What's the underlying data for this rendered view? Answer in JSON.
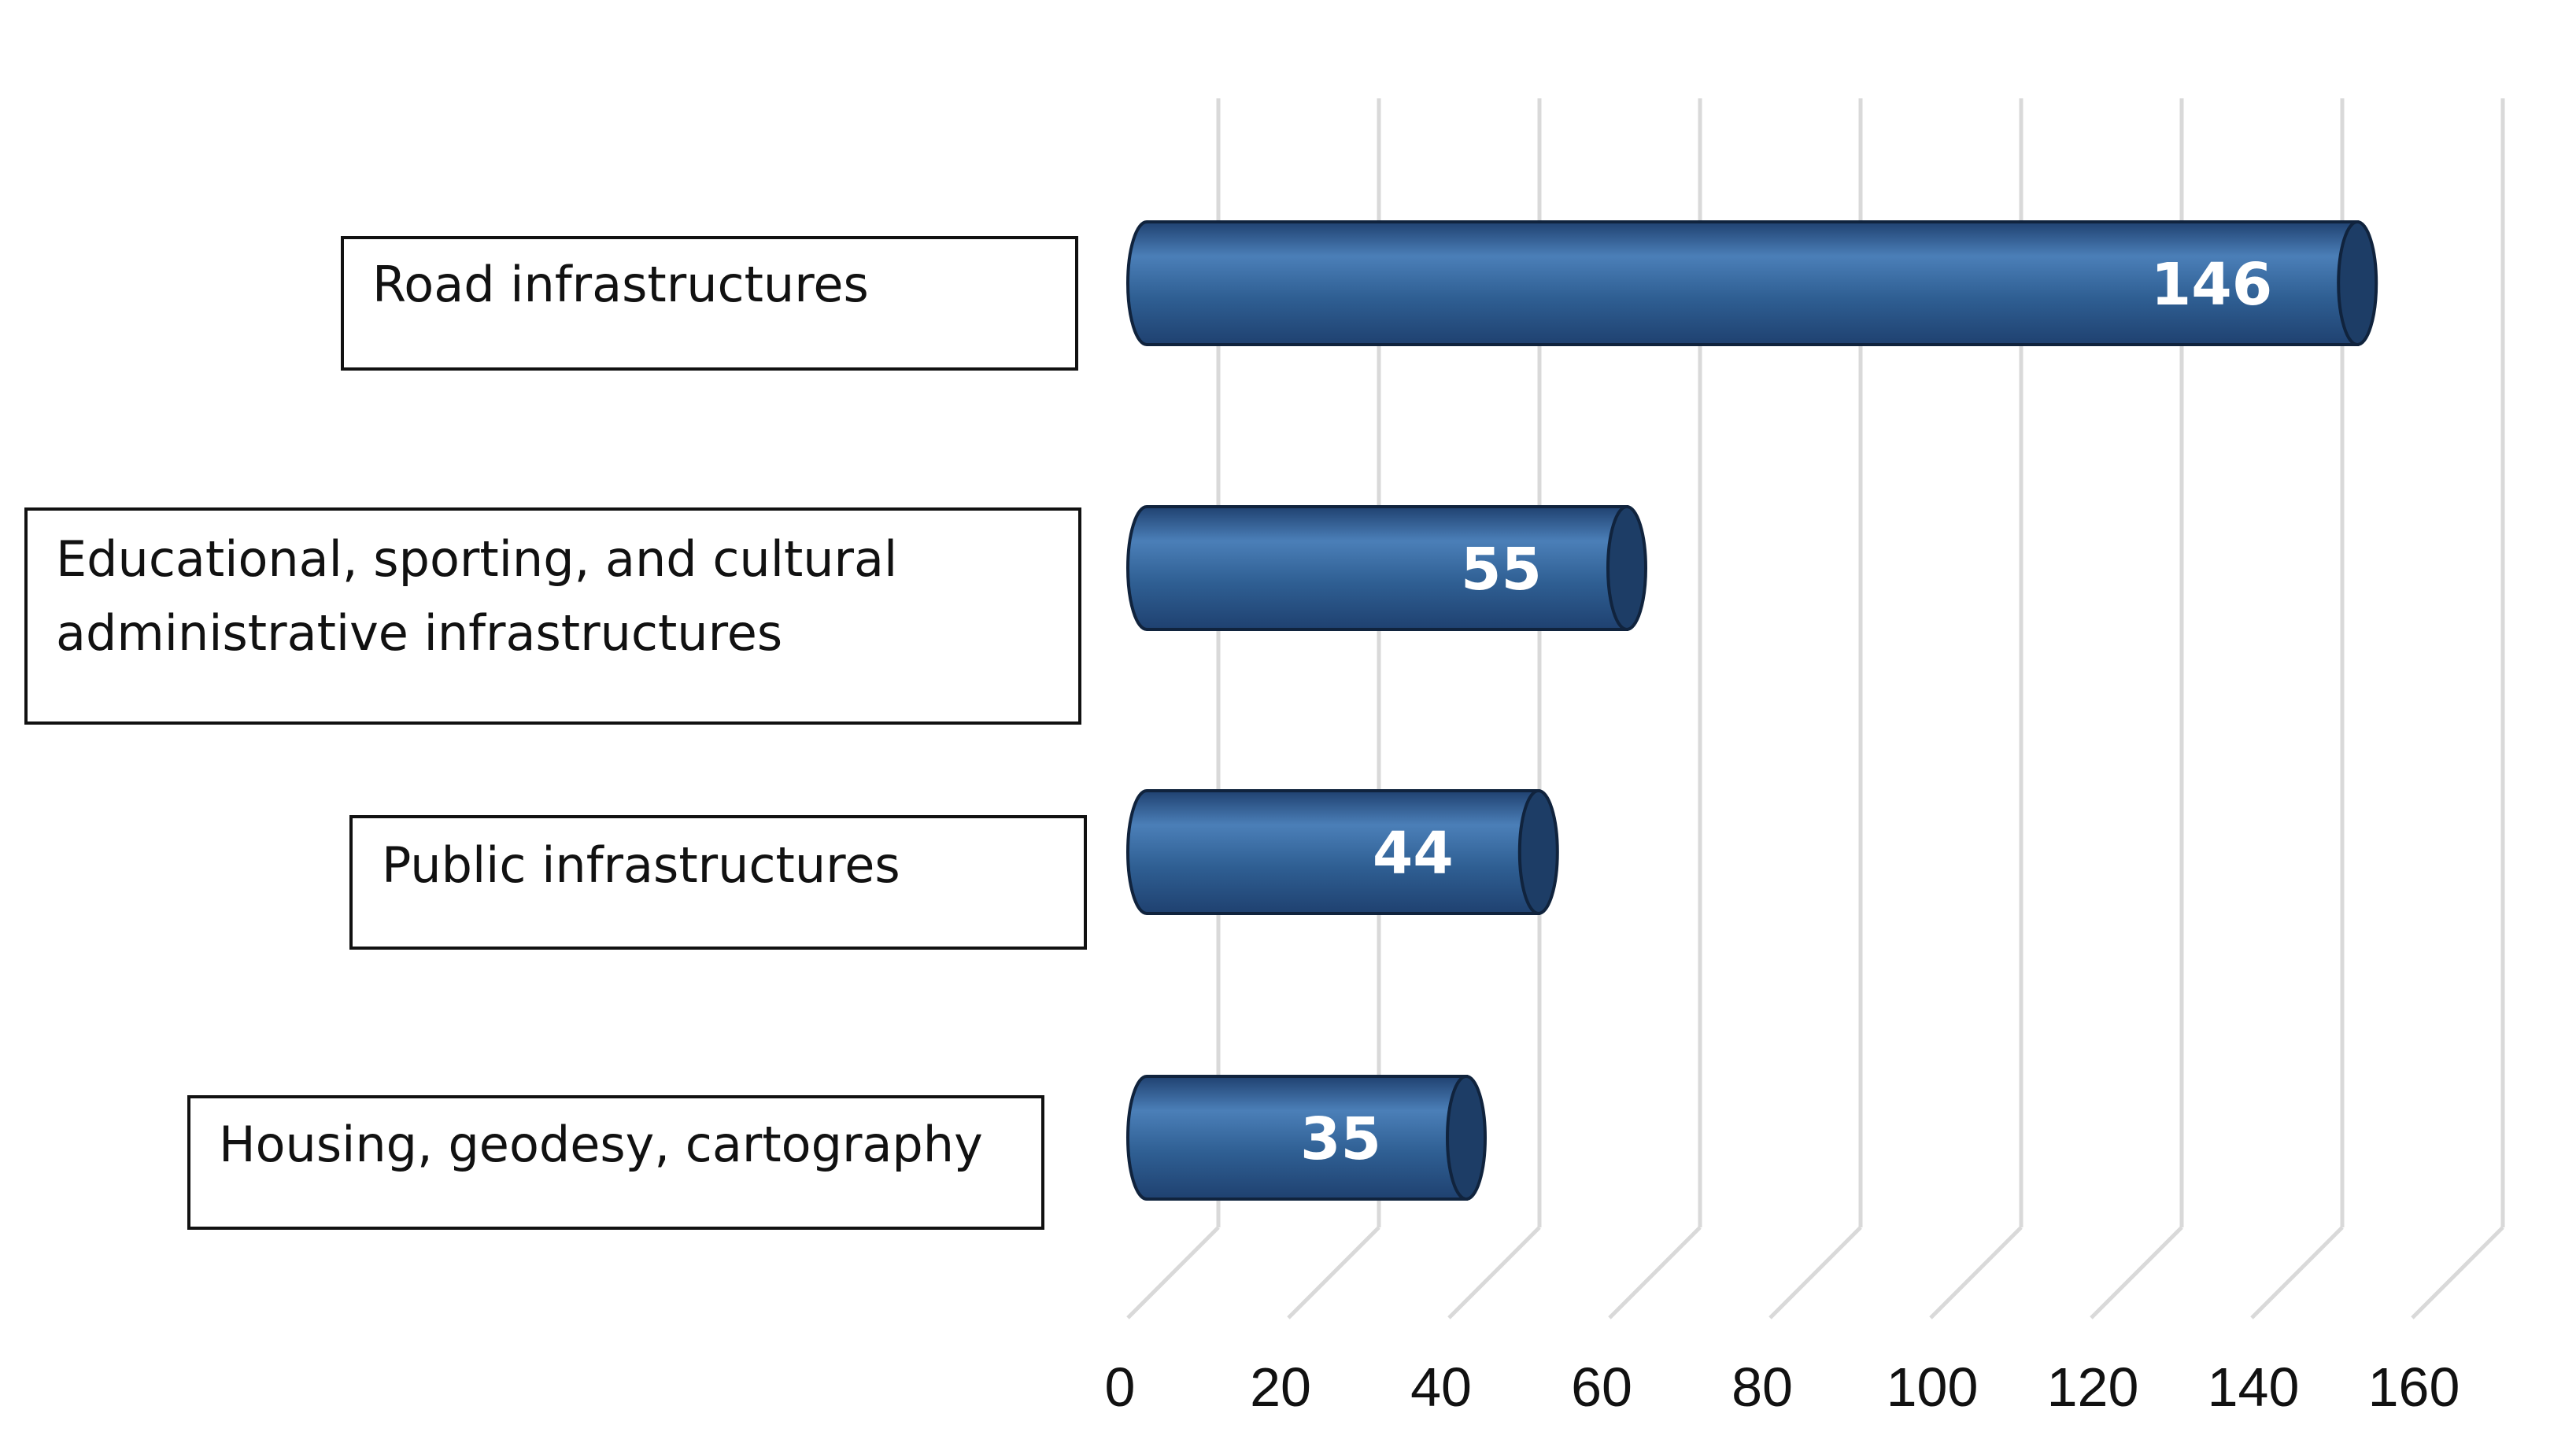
{
  "chart_data": {
    "type": "bar",
    "orientation": "horizontal",
    "style": "3d-cylinder",
    "categories": [
      "Road infrastructures",
      "Educational, sporting, and cultural administrative infrastructures",
      "Public infrastructures",
      "Housing, geodesy, cartography"
    ],
    "category_lines": [
      [
        "Road infrastructures"
      ],
      [
        "Educational, sporting, and cultural",
        "administrative infrastructures"
      ],
      [
        "Public infrastructures"
      ],
      [
        "Housing, geodesy, cartography"
      ]
    ],
    "values": [
      146,
      55,
      44,
      35
    ],
    "xlim": [
      0,
      160
    ],
    "xticks": [
      0,
      20,
      40,
      60,
      80,
      100,
      120,
      140,
      160
    ],
    "data_labels": true,
    "grid": true,
    "legend": "none",
    "title": "",
    "xlabel": "",
    "ylabel": "",
    "colors": {
      "bar": "#2f5f93",
      "bar_highlight": "#4b7fb8",
      "bar_shadow": "#1f4170",
      "bar_cap": "#1d3d66",
      "outline": "#10233d",
      "grid": "#d9d9d9"
    }
  }
}
